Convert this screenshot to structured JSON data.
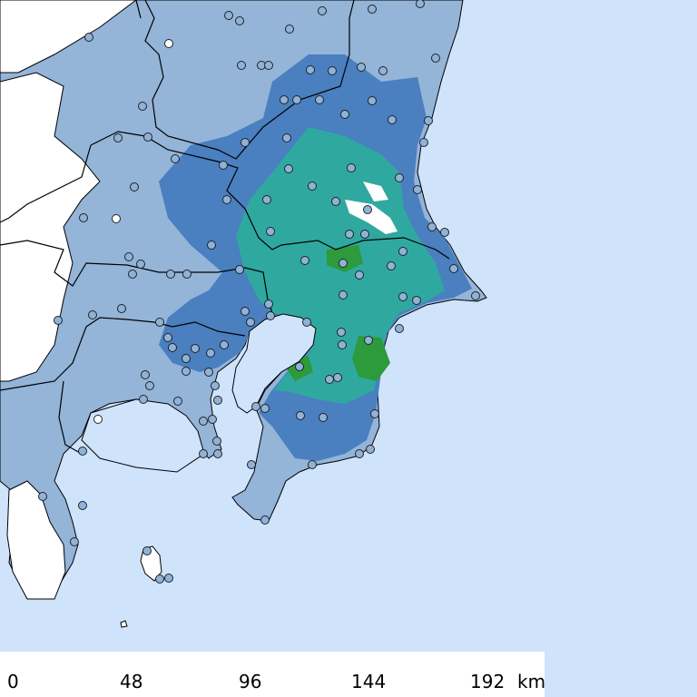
{
  "map": {
    "type": "shaded-intensity-map",
    "colors": {
      "sea": "#cfe3fb",
      "land_outside": "#ffffff",
      "class_1": "#94b4d8",
      "class_2": "#4a7fc0",
      "class_3": "#2fa9a0",
      "class_4": "#2d9a3c",
      "station_fill": "#8fb2d8",
      "station_fill_low": "#ffffff",
      "boundary": "#000000"
    }
  },
  "scale_bar": {
    "ticks": [
      "0",
      "48",
      "96",
      "144",
      "192"
    ],
    "unit": "km"
  }
}
